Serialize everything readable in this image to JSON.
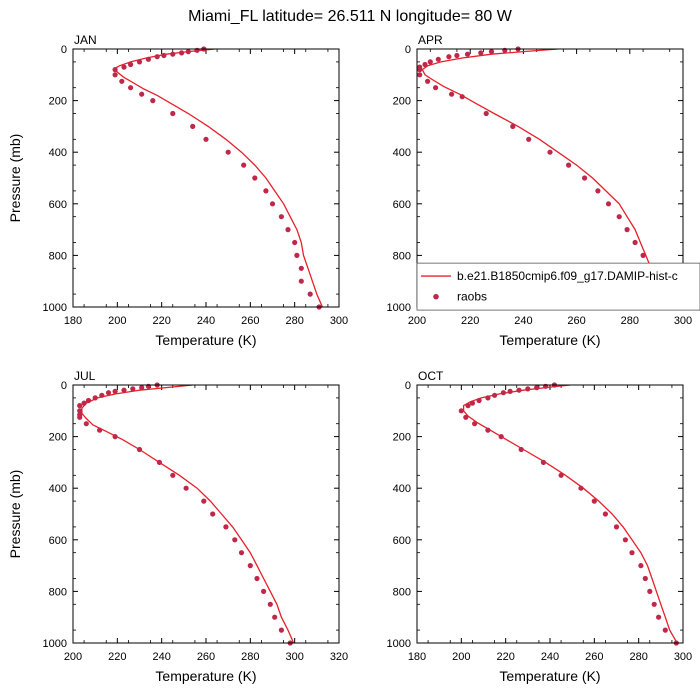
{
  "figure": {
    "title": "Miami_FL  latitude= 26.511 N longitude= 80 W",
    "xlabel": "Temperature (K)",
    "ylabel": "Pressure (mb)"
  },
  "colors": {
    "model_line": "#e8202a",
    "obs_marker": "#c0284a"
  },
  "legend": {
    "model_label": "b.e21.B1850cmip6.f09_g17.DAMIP-hist-c",
    "obs_label": "raobs",
    "panel": "APR"
  },
  "chart_data": [
    {
      "type": "line",
      "title": "JAN",
      "xlim": [
        180,
        300
      ],
      "ylim": [
        0,
        1000
      ],
      "y_inverted": true,
      "xticks": [
        180,
        200,
        220,
        240,
        260,
        280,
        300
      ],
      "yticks": [
        0,
        200,
        400,
        600,
        800,
        1000
      ],
      "series": [
        {
          "name": "b.e21.B1850cmip6.f09_g17.DAMIP-hist-c",
          "kind": "line",
          "points": [
            [
              244,
              0
            ],
            [
              232,
              10
            ],
            [
              222,
              20
            ],
            [
              213,
              35
            ],
            [
              206,
              50
            ],
            [
              201,
              65
            ],
            [
              199,
              75
            ],
            [
              200,
              90
            ],
            [
              203,
              110
            ],
            [
              207,
              130
            ],
            [
              212,
              155
            ],
            [
              218,
              180
            ],
            [
              224,
              210
            ],
            [
              232,
              250
            ],
            [
              241,
              300
            ],
            [
              249,
              350
            ],
            [
              256,
              400
            ],
            [
              262,
              450
            ],
            [
              267,
              500
            ],
            [
              271,
              550
            ],
            [
              275,
              600
            ],
            [
              278,
              650
            ],
            [
              281,
              700
            ],
            [
              283,
              750
            ],
            [
              284,
              800
            ],
            [
              286,
              850
            ],
            [
              288,
              900
            ],
            [
              290,
              950
            ],
            [
              293,
              1010
            ]
          ]
        },
        {
          "name": "raobs",
          "kind": "scatter",
          "points": [
            [
              239,
              0
            ],
            [
              236,
              5
            ],
            [
              232,
              10
            ],
            [
              229,
              15
            ],
            [
              225,
              20
            ],
            [
              221,
              25
            ],
            [
              218,
              30
            ],
            [
              214,
              40
            ],
            [
              210,
              50
            ],
            [
              206,
              60
            ],
            [
              203,
              70
            ],
            [
              199,
              80
            ],
            [
              199,
              100
            ],
            [
              202,
              125
            ],
            [
              206,
              150
            ],
            [
              211,
              175
            ],
            [
              216,
              200
            ],
            [
              225,
              250
            ],
            [
              234,
              300
            ],
            [
              240,
              350
            ],
            [
              250,
              400
            ],
            [
              257,
              450
            ],
            [
              262,
              500
            ],
            [
              267,
              550
            ],
            [
              270,
              600
            ],
            [
              274,
              650
            ],
            [
              277,
              700
            ],
            [
              280,
              750
            ],
            [
              281,
              800
            ],
            [
              283,
              850
            ],
            [
              283,
              900
            ],
            [
              287,
              950
            ],
            [
              291,
              1000
            ]
          ]
        }
      ]
    },
    {
      "type": "line",
      "title": "APR",
      "xlim": [
        200,
        300
      ],
      "ylim": [
        0,
        1000
      ],
      "y_inverted": true,
      "xticks": [
        200,
        220,
        240,
        260,
        280,
        300
      ],
      "yticks": [
        0,
        200,
        400,
        600,
        800,
        1000
      ],
      "series": [
        {
          "name": "b.e21.B1850cmip6.f09_g17.DAMIP-hist-c",
          "kind": "line",
          "points": [
            [
              253,
              0
            ],
            [
              240,
              10
            ],
            [
              228,
              20
            ],
            [
              217,
              35
            ],
            [
              209,
              50
            ],
            [
              204,
              65
            ],
            [
              202,
              80
            ],
            [
              203,
              100
            ],
            [
              206,
              120
            ],
            [
              210,
              145
            ],
            [
              216,
              175
            ],
            [
              222,
              210
            ],
            [
              229,
              250
            ],
            [
              238,
              300
            ],
            [
              246,
              350
            ],
            [
              253,
              400
            ],
            [
              260,
              450
            ],
            [
              266,
              500
            ],
            [
              271,
              550
            ],
            [
              276,
              600
            ],
            [
              279,
              650
            ],
            [
              282,
              700
            ],
            [
              284,
              750
            ],
            [
              286,
              800
            ],
            [
              288,
              850
            ],
            [
              290,
              900
            ],
            [
              293,
              950
            ],
            [
              296,
              1010
            ]
          ]
        },
        {
          "name": "raobs",
          "kind": "scatter",
          "points": [
            [
              238,
              0
            ],
            [
              233,
              5
            ],
            [
              228,
              10
            ],
            [
              224,
              15
            ],
            [
              219,
              20
            ],
            [
              215,
              25
            ],
            [
              212,
              30
            ],
            [
              208,
              40
            ],
            [
              205,
              50
            ],
            [
              203,
              60
            ],
            [
              201,
              70
            ],
            [
              201,
              80
            ],
            [
              201,
              100
            ],
            [
              204,
              125
            ],
            [
              207,
              150
            ],
            [
              213,
              175
            ],
            [
              217,
              185
            ],
            [
              226,
              250
            ],
            [
              236,
              300
            ],
            [
              242,
              350
            ],
            [
              250,
              400
            ],
            [
              257,
              450
            ],
            [
              263,
              500
            ],
            [
              268,
              550
            ],
            [
              272,
              600
            ],
            [
              276,
              650
            ],
            [
              279,
              700
            ],
            [
              282,
              750
            ],
            [
              285,
              800
            ],
            [
              287,
              850
            ],
            [
              289,
              900
            ],
            [
              292,
              950
            ],
            [
              296,
              1000
            ]
          ]
        }
      ]
    },
    {
      "type": "line",
      "title": "JUL",
      "xlim": [
        200,
        320
      ],
      "ylim": [
        0,
        1000
      ],
      "y_inverted": true,
      "xticks": [
        200,
        220,
        240,
        260,
        280,
        300,
        320
      ],
      "yticks": [
        0,
        200,
        400,
        600,
        800,
        1000
      ],
      "series": [
        {
          "name": "b.e21.B1850cmip6.f09_g17.DAMIP-hist-c",
          "kind": "line",
          "points": [
            [
              254,
              0
            ],
            [
              242,
              10
            ],
            [
              230,
              20
            ],
            [
              219,
              35
            ],
            [
              211,
              50
            ],
            [
              206,
              70
            ],
            [
              204,
              90
            ],
            [
              204,
              110
            ],
            [
              206,
              130
            ],
            [
              209,
              155
            ],
            [
              215,
              180
            ],
            [
              222,
              210
            ],
            [
              230,
              250
            ],
            [
              239,
              300
            ],
            [
              248,
              350
            ],
            [
              256,
              400
            ],
            [
              262,
              450
            ],
            [
              267,
              500
            ],
            [
              272,
              550
            ],
            [
              276,
              600
            ],
            [
              280,
              650
            ],
            [
              283,
              700
            ],
            [
              286,
              750
            ],
            [
              289,
              800
            ],
            [
              292,
              850
            ],
            [
              294,
              900
            ],
            [
              297,
              950
            ],
            [
              300,
              1010
            ]
          ]
        },
        {
          "name": "raobs",
          "kind": "scatter",
          "points": [
            [
              238,
              0
            ],
            [
              234,
              5
            ],
            [
              231,
              10
            ],
            [
              227,
              15
            ],
            [
              223,
              20
            ],
            [
              219,
              25
            ],
            [
              216,
              30
            ],
            [
              213,
              40
            ],
            [
              210,
              50
            ],
            [
              207,
              60
            ],
            [
              205,
              70
            ],
            [
              203,
              80
            ],
            [
              203,
              100
            ],
            [
              203,
              115
            ],
            [
              203,
              125
            ],
            [
              206,
              150
            ],
            [
              212,
              175
            ],
            [
              219,
              200
            ],
            [
              230,
              250
            ],
            [
              239,
              300
            ],
            [
              245,
              350
            ],
            [
              251,
              400
            ],
            [
              259,
              450
            ],
            [
              263,
              500
            ],
            [
              269,
              550
            ],
            [
              273,
              600
            ],
            [
              276,
              650
            ],
            [
              280,
              700
            ],
            [
              283,
              750
            ],
            [
              286,
              800
            ],
            [
              289,
              850
            ],
            [
              291,
              900
            ],
            [
              294,
              950
            ],
            [
              298,
              1000
            ]
          ]
        }
      ]
    },
    {
      "type": "line",
      "title": "OCT",
      "xlim": [
        180,
        300
      ],
      "ylim": [
        0,
        1000
      ],
      "y_inverted": true,
      "xticks": [
        180,
        200,
        220,
        240,
        260,
        280,
        300
      ],
      "yticks": [
        0,
        200,
        400,
        600,
        800,
        1000
      ],
      "series": [
        {
          "name": "b.e21.B1850cmip6.f09_g17.DAMIP-hist-c",
          "kind": "line",
          "points": [
            [
              249,
              0
            ],
            [
              238,
              10
            ],
            [
              228,
              20
            ],
            [
              217,
              35
            ],
            [
              209,
              50
            ],
            [
              204,
              65
            ],
            [
              201,
              80
            ],
            [
              201,
              100
            ],
            [
              203,
              120
            ],
            [
              207,
              145
            ],
            [
              213,
              175
            ],
            [
              220,
              210
            ],
            [
              228,
              250
            ],
            [
              238,
              300
            ],
            [
              247,
              350
            ],
            [
              255,
              400
            ],
            [
              262,
              450
            ],
            [
              268,
              500
            ],
            [
              273,
              550
            ],
            [
              277,
              600
            ],
            [
              281,
              650
            ],
            [
              284,
              700
            ],
            [
              286,
              750
            ],
            [
              288,
              800
            ],
            [
              290,
              850
            ],
            [
              292,
              900
            ],
            [
              294,
              950
            ],
            [
              298,
              1010
            ]
          ]
        },
        {
          "name": "raobs",
          "kind": "scatter",
          "points": [
            [
              242,
              0
            ],
            [
              238,
              5
            ],
            [
              234,
              10
            ],
            [
              230,
              15
            ],
            [
              226,
              20
            ],
            [
              222,
              25
            ],
            [
              219,
              30
            ],
            [
              215,
              40
            ],
            [
              212,
              50
            ],
            [
              208,
              60
            ],
            [
              205,
              70
            ],
            [
              203,
              80
            ],
            [
              200,
              100
            ],
            [
              202,
              125
            ],
            [
              206,
              150
            ],
            [
              212,
              175
            ],
            [
              218,
              200
            ],
            [
              227,
              250
            ],
            [
              237,
              300
            ],
            [
              245,
              350
            ],
            [
              254,
              400
            ],
            [
              260,
              450
            ],
            [
              265,
              500
            ],
            [
              270,
              550
            ],
            [
              274,
              600
            ],
            [
              277,
              650
            ],
            [
              281,
              700
            ],
            [
              283,
              750
            ],
            [
              285,
              800
            ],
            [
              287,
              850
            ],
            [
              289,
              900
            ],
            [
              292,
              950
            ],
            [
              297,
              1000
            ]
          ]
        }
      ]
    }
  ]
}
